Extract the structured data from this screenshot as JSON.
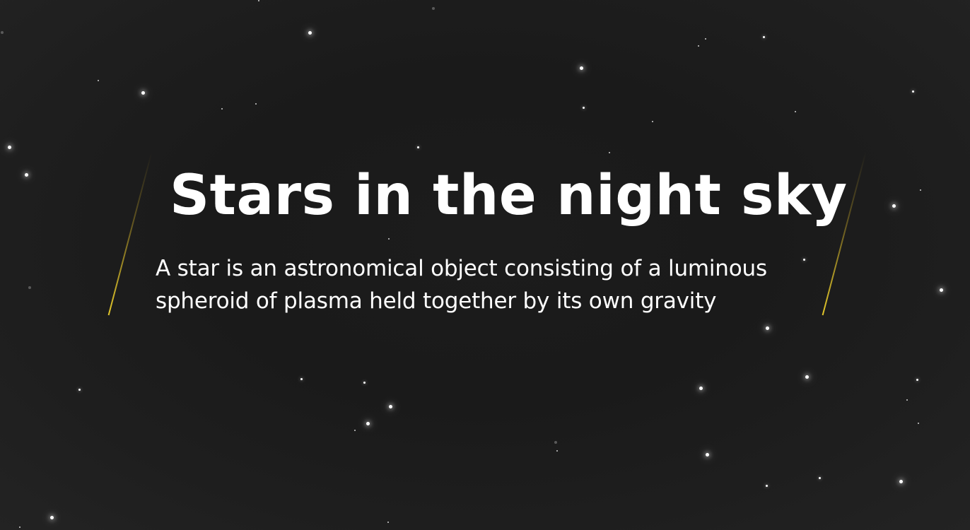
{
  "hero": {
    "title": "Stars in the night sky",
    "description": "A star is an astronomical object consisting of a luminous spheroid of plasma held together by its own gravity"
  },
  "colors": {
    "background": "#1c1c1c",
    "text": "#ffffff",
    "streak_accent": "#e3c72a"
  }
}
